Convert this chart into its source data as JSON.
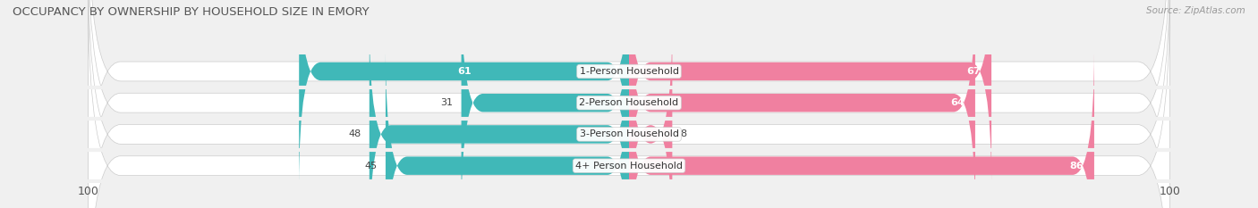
{
  "title": "OCCUPANCY BY OWNERSHIP BY HOUSEHOLD SIZE IN EMORY",
  "source": "Source: ZipAtlas.com",
  "categories": [
    "1-Person Household",
    "2-Person Household",
    "3-Person Household",
    "4+ Person Household"
  ],
  "owner_values": [
    61,
    31,
    48,
    45
  ],
  "renter_values": [
    67,
    64,
    8,
    86
  ],
  "owner_color": "#40b8b8",
  "renter_color": "#f080a0",
  "axis_max": 100,
  "background_color": "#f0f0f0",
  "bar_bg_color": "#ffffff",
  "bar_height": 0.62,
  "row_sep_color": "#d8d8d8",
  "title_fontsize": 9.5,
  "label_fontsize": 8,
  "tick_fontsize": 9,
  "source_fontsize": 7.5
}
